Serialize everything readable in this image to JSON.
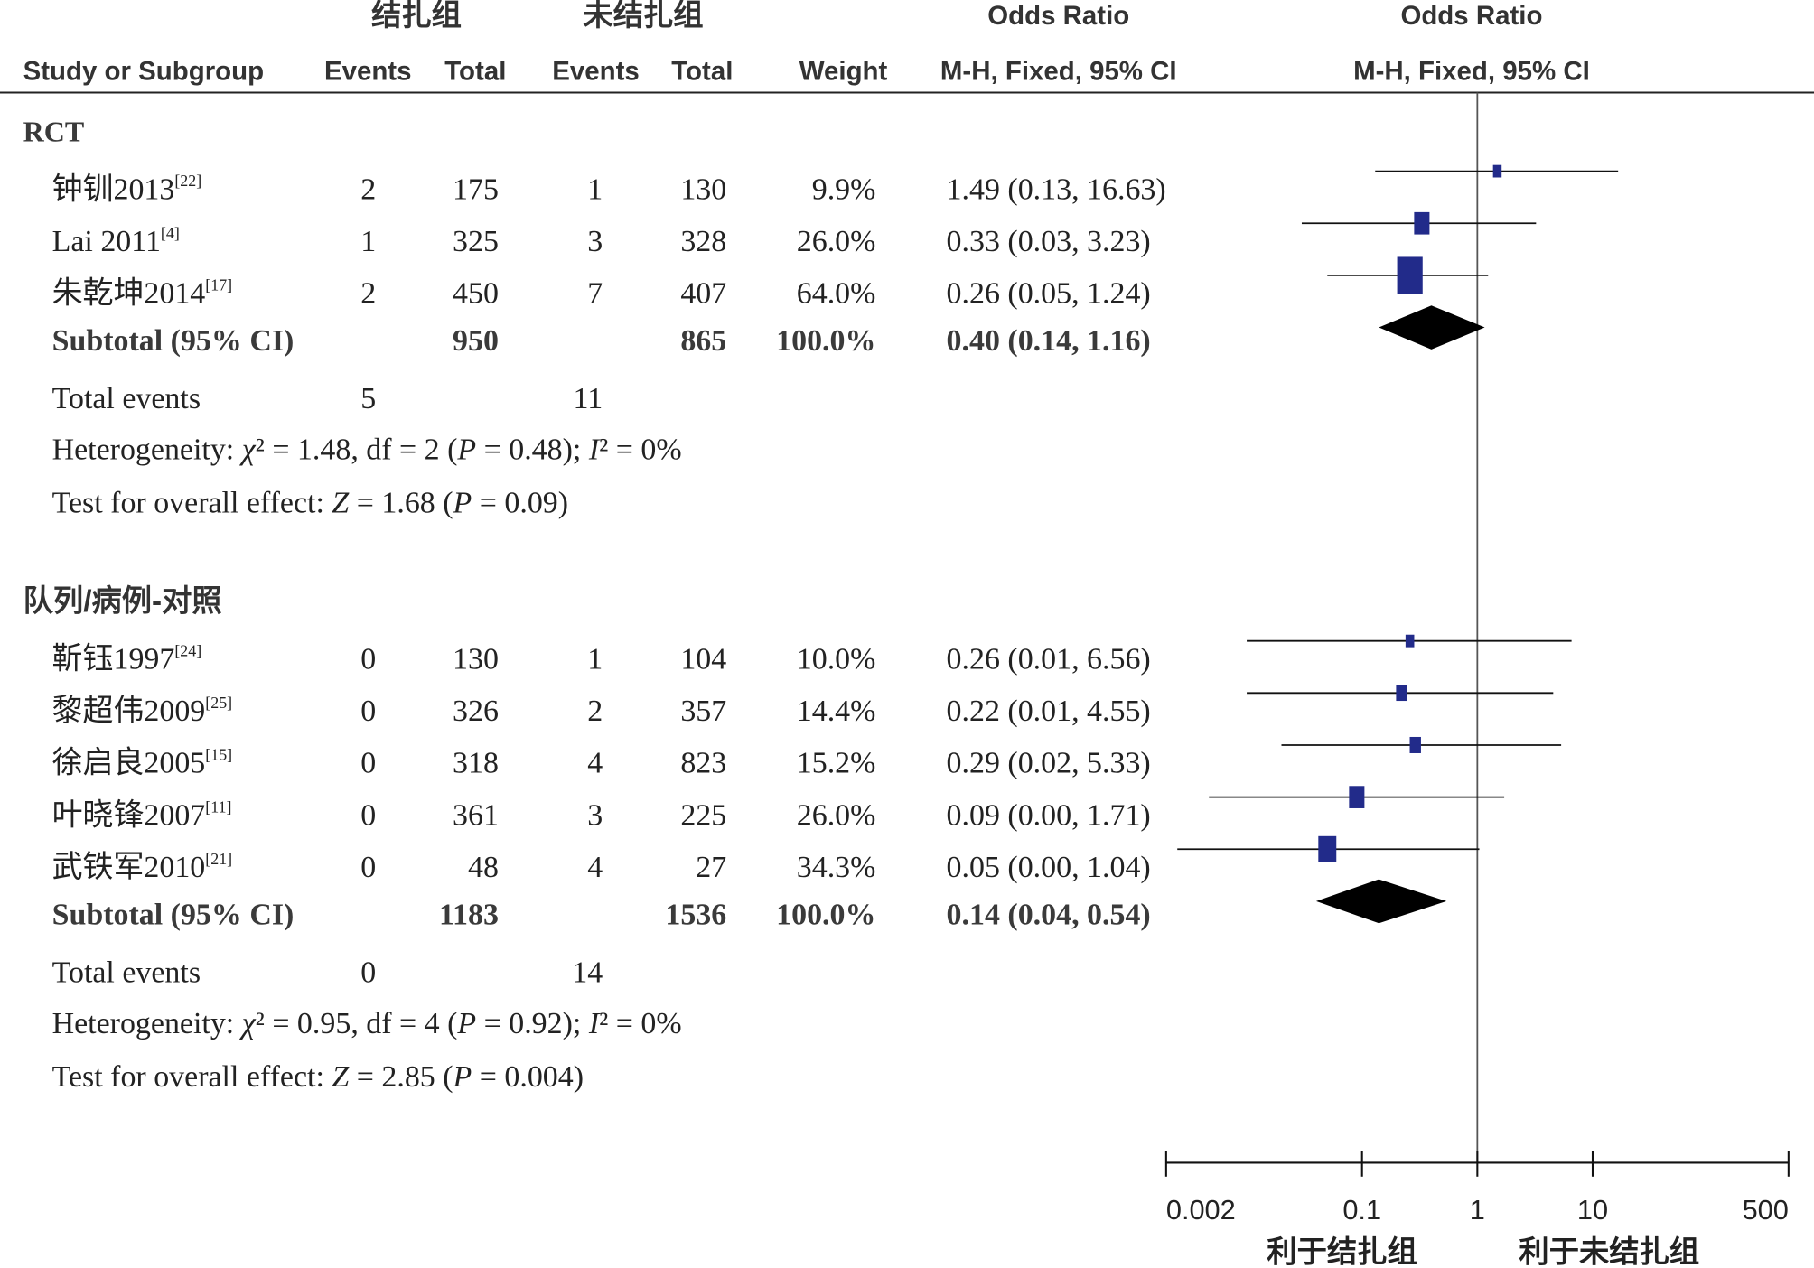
{
  "header": {
    "group1": "结扎组",
    "group2": "未结扎组",
    "or_column": "Odds Ratio",
    "or_plot": "Odds Ratio",
    "study": "Study or Subgroup",
    "events1": "Events",
    "total1": "Total",
    "events2": "Events",
    "total2": "Total",
    "weight": "Weight",
    "method_column": "M-H, Fixed, 95% CI",
    "method_plot": "M-H, Fixed, 95% CI"
  },
  "colors": {
    "study_square": "#222b8a",
    "diamond": "#000000",
    "ci_line": "#111111"
  },
  "chart_data": {
    "type": "scatter",
    "x_scale": "log",
    "xlim": [
      0.002,
      500
    ],
    "x_ticks": [
      0.002,
      0.1,
      1,
      10,
      500
    ],
    "x_tick_labels": [
      "0.002",
      "0.1",
      "1",
      "10",
      "500"
    ],
    "reference_line": 1,
    "favours_left": "利于结扎组",
    "favours_right": "利于未结扎组",
    "groups": [
      {
        "name": "RCT",
        "studies": [
          {
            "name": "钟钏2013",
            "ref": "[22]",
            "events1": "2",
            "total1": "175",
            "events2": "1",
            "total2": "130",
            "weight": "9.9%",
            "ci_text": "1.49 (0.13, 16.63)",
            "or": 1.49,
            "ci_low": 0.13,
            "ci_high": 16.63
          },
          {
            "name": "Lai 2011",
            "ref": "[4]",
            "events1": "1",
            "total1": "325",
            "events2": "3",
            "total2": "328",
            "weight": "26.0%",
            "ci_text": "0.33 (0.03, 3.23)",
            "or": 0.33,
            "ci_low": 0.03,
            "ci_high": 3.23
          },
          {
            "name": "朱乾坤2014",
            "ref": "[17]",
            "events1": "2",
            "total1": "450",
            "events2": "7",
            "total2": "407",
            "weight": "64.0%",
            "ci_text": "0.26 (0.05, 1.24)",
            "or": 0.26,
            "ci_low": 0.05,
            "ci_high": 1.24
          }
        ],
        "subtotal": {
          "label": "Subtotal (95% CI)",
          "total1": "950",
          "total2": "865",
          "weight": "100.0%",
          "ci_text": "0.40 (0.14, 1.16)",
          "or": 0.4,
          "ci_low": 0.14,
          "ci_high": 1.16
        },
        "total_events": {
          "label": "Total events",
          "events1": "5",
          "events2": "11"
        },
        "heterogeneity": [
          {
            "text": "Heterogeneity: "
          },
          {
            "text": "χ",
            "italic": true
          },
          {
            "text": "² = 1.48, df = 2 ("
          },
          {
            "text": "P",
            "italic": true
          },
          {
            "text": " = 0.48); "
          },
          {
            "text": "I",
            "italic": true
          },
          {
            "text": "² = 0%"
          }
        ],
        "overall_effect": [
          {
            "text": "Test for overall effect: "
          },
          {
            "text": "Z",
            "italic": true
          },
          {
            "text": " = 1.68 ("
          },
          {
            "text": "P",
            "italic": true
          },
          {
            "text": " = 0.09)"
          }
        ]
      },
      {
        "name": "队列/病例-对照",
        "studies": [
          {
            "name": "靳钰1997",
            "ref": "[24]",
            "events1": "0",
            "total1": "130",
            "events2": "1",
            "total2": "104",
            "weight": "10.0%",
            "ci_text": "0.26 (0.01, 6.56)",
            "or": 0.26,
            "ci_low": 0.01,
            "ci_high": 6.56
          },
          {
            "name": "黎超伟2009",
            "ref": "[25]",
            "events1": "0",
            "total1": "326",
            "events2": "2",
            "total2": "357",
            "weight": "14.4%",
            "ci_text": "0.22 (0.01, 4.55)",
            "or": 0.22,
            "ci_low": 0.01,
            "ci_high": 4.55
          },
          {
            "name": "徐启良2005",
            "ref": "[15]",
            "events1": "0",
            "total1": "318",
            "events2": "4",
            "total2": "823",
            "weight": "15.2%",
            "ci_text": "0.29 (0.02, 5.33)",
            "or": 0.29,
            "ci_low": 0.02,
            "ci_high": 5.33
          },
          {
            "name": "叶晓锋2007",
            "ref": "[11]",
            "events1": "0",
            "total1": "361",
            "events2": "3",
            "total2": "225",
            "weight": "26.0%",
            "ci_text": "0.09 (0.00, 1.71)",
            "or": 0.09,
            "ci_low": 0.0047,
            "ci_high": 1.71
          },
          {
            "name": "武铁军2010",
            "ref": "[21]",
            "events1": "0",
            "total1": "48",
            "events2": "4",
            "total2": "27",
            "weight": "34.3%",
            "ci_text": "0.05 (0.00, 1.04)",
            "or": 0.05,
            "ci_low": 0.0025,
            "ci_high": 1.04
          }
        ],
        "subtotal": {
          "label": "Subtotal (95% CI)",
          "total1": "1183",
          "total2": "1536",
          "weight": "100.0%",
          "ci_text": "0.14 (0.04, 0.54)",
          "or": 0.14,
          "ci_low": 0.04,
          "ci_high": 0.54
        },
        "total_events": {
          "label": "Total events",
          "events1": "0",
          "events2": "14"
        },
        "heterogeneity": [
          {
            "text": "Heterogeneity: "
          },
          {
            "text": "χ",
            "italic": true
          },
          {
            "text": "² = 0.95, df = 4 ("
          },
          {
            "text": "P",
            "italic": true
          },
          {
            "text": " = 0.92); "
          },
          {
            "text": "I",
            "italic": true
          },
          {
            "text": "² = 0%"
          }
        ],
        "overall_effect": [
          {
            "text": "Test for overall effect: "
          },
          {
            "text": "Z",
            "italic": true
          },
          {
            "text": " = 2.85 ("
          },
          {
            "text": "P",
            "italic": true
          },
          {
            "text": " = 0.004)"
          }
        ]
      }
    ]
  }
}
